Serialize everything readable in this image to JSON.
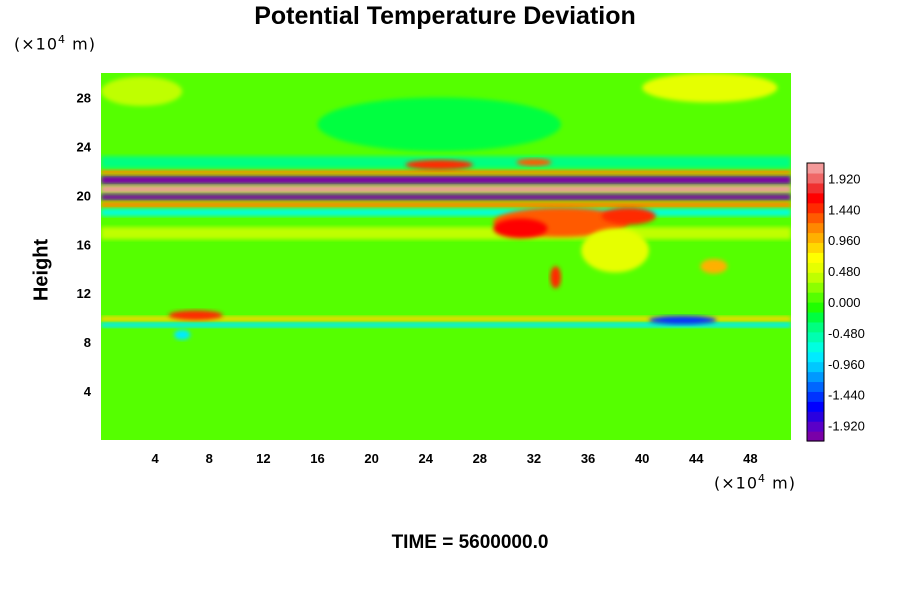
{
  "chart_data": {
    "type": "heatmap",
    "title": "Potential Temperature Deviation",
    "ylabel": "Height",
    "x_unit": {
      "prefix": "(×10",
      "exp": "4",
      "suffix": " m)"
    },
    "y_unit": {
      "prefix": "(×10",
      "exp": "4",
      "suffix": " m)"
    },
    "xlim": [
      0,
      51
    ],
    "ylim": [
      0,
      30
    ],
    "x_ticks": [
      "4",
      "8",
      "12",
      "16",
      "20",
      "24",
      "28",
      "32",
      "36",
      "40",
      "44",
      "48"
    ],
    "y_ticks": [
      "4",
      "8",
      "12",
      "16",
      "20",
      "24",
      "28"
    ],
    "colorbar": {
      "min": -2.16,
      "max": 2.16,
      "labels": [
        "1.920",
        "1.440",
        "0.960",
        "0.480",
        "0.000",
        "-0.480",
        "-0.960",
        "-1.440",
        "-1.920"
      ],
      "colors": [
        "#7a00a8",
        "#5a00c8",
        "#2a00e0",
        "#0000ff",
        "#0033ff",
        "#0066ff",
        "#0099ff",
        "#00c8ff",
        "#00ebff",
        "#00ffe0",
        "#00ffb0",
        "#00ff80",
        "#00ff40",
        "#20ff00",
        "#55ff00",
        "#8cff00",
        "#bfff00",
        "#e6ff00",
        "#ffff00",
        "#ffd800",
        "#ffb000",
        "#ff8800",
        "#ff5a00",
        "#ff2a00",
        "#ff0000",
        "#f03030",
        "#f06868",
        "#f49a9a"
      ]
    },
    "features": [
      {
        "kind": "band",
        "x0": 0,
        "x1": 51,
        "y0": 20.9,
        "y1": 21.6,
        "value": -2.1
      },
      {
        "kind": "band",
        "x0": 0,
        "x1": 51,
        "y0": 20.2,
        "y1": 20.8,
        "value": 2.1
      },
      {
        "kind": "band",
        "x0": 0,
        "x1": 51,
        "y0": 19.6,
        "y1": 20.1,
        "value": -2.1
      },
      {
        "kind": "band",
        "x0": 0,
        "x1": 51,
        "y0": 19.0,
        "y1": 19.5,
        "value": 1.2
      },
      {
        "kind": "band",
        "x0": 0,
        "x1": 51,
        "y0": 21.7,
        "y1": 22.1,
        "value": 1.2
      },
      {
        "kind": "band",
        "x0": 0,
        "x1": 51,
        "y0": 18.3,
        "y1": 18.9,
        "value": -0.7
      },
      {
        "kind": "band",
        "x0": 0,
        "x1": 51,
        "y0": 22.2,
        "y1": 23.2,
        "value": -0.4
      },
      {
        "kind": "band",
        "x0": 0,
        "x1": 51,
        "y0": 9.7,
        "y1": 10.1,
        "value": 0.9
      },
      {
        "kind": "band",
        "x0": 0,
        "x1": 51,
        "y0": 9.2,
        "y1": 9.6,
        "value": -0.8
      },
      {
        "kind": "band",
        "x0": 0,
        "x1": 51,
        "y0": 16.4,
        "y1": 17.4,
        "value": 0.4
      },
      {
        "kind": "patch",
        "x": 34,
        "y": 17.8,
        "rx": 5,
        "ry": 1.2,
        "value": 1.3
      },
      {
        "kind": "patch",
        "x": 31,
        "y": 17.3,
        "rx": 2,
        "ry": 0.8,
        "value": 1.6
      },
      {
        "kind": "patch",
        "x": 39,
        "y": 18.3,
        "rx": 2,
        "ry": 0.7,
        "value": 1.5
      },
      {
        "kind": "patch",
        "x": 33.6,
        "y": 13.3,
        "rx": 0.4,
        "ry": 0.9,
        "value": 1.4
      },
      {
        "kind": "patch",
        "x": 45.3,
        "y": 14.2,
        "rx": 1,
        "ry": 0.6,
        "value": 1.0
      },
      {
        "kind": "patch",
        "x": 38,
        "y": 15.5,
        "rx": 2.5,
        "ry": 1.8,
        "value": 0.6
      },
      {
        "kind": "patch",
        "x": 7,
        "y": 10.2,
        "rx": 2,
        "ry": 0.4,
        "value": 1.5
      },
      {
        "kind": "patch",
        "x": 25,
        "y": 22.5,
        "rx": 2.5,
        "ry": 0.4,
        "value": 1.5
      },
      {
        "kind": "patch",
        "x": 32,
        "y": 22.7,
        "rx": 1.3,
        "ry": 0.3,
        "value": 1.3
      },
      {
        "kind": "patch",
        "x": 43,
        "y": 9.8,
        "rx": 2.5,
        "ry": 0.35,
        "value": -1.5
      },
      {
        "kind": "patch",
        "x": 6,
        "y": 8.6,
        "rx": 0.6,
        "ry": 0.4,
        "value": -0.8
      },
      {
        "kind": "patch",
        "x": 25,
        "y": 25.8,
        "rx": 9,
        "ry": 2.2,
        "value": -0.3
      },
      {
        "kind": "patch",
        "x": 45,
        "y": 28.8,
        "rx": 5,
        "ry": 1.2,
        "value": 0.5
      },
      {
        "kind": "patch",
        "x": 3,
        "y": 28.5,
        "rx": 3,
        "ry": 1.2,
        "value": 0.4
      }
    ]
  },
  "time_label": "TIME = 5600000.0"
}
